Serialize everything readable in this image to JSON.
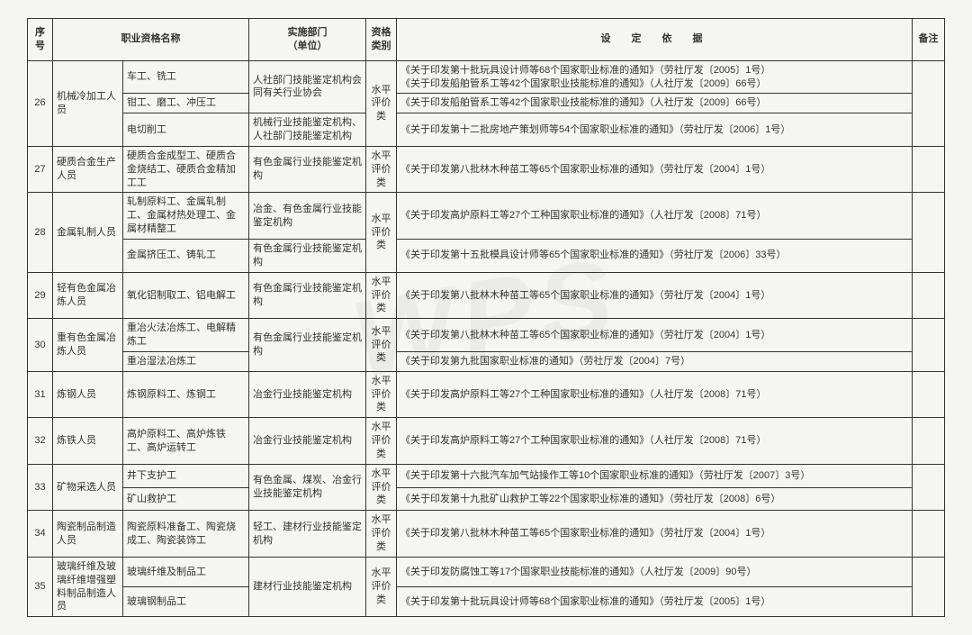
{
  "watermark": "WPS",
  "headers": {
    "seq": "序号",
    "name": "职业资格名称",
    "dept": "实施部门\n（单位）",
    "cat": "资格\n类别",
    "basis": "设　定　依　据",
    "note": "备注"
  },
  "rows": [
    {
      "seq": "26",
      "nameA": "机械冷加工人员",
      "sub": [
        {
          "nameB": "车工、铣工",
          "dept": "人社部门技能鉴定机构会同有关行业协会",
          "deptSpan": 2,
          "basis": "《关于印发第十批玩具设计师等68个国家职业标准的通知》（劳社厅发〔2005〕1号）\n《关于印发船舶管系工等42个国家职业技能标准的通知》（人社厅发〔2009〕66号）"
        },
        {
          "nameB": "钳工、磨工、冲压工",
          "basis": "《关于印发船舶管系工等42个国家职业技能标准的通知》（人社厅发〔2009〕66号）"
        },
        {
          "nameB": "电切削工",
          "dept": "机械行业技能鉴定机构、人社部门技能鉴定机构",
          "basis": "《关于印发第十二批房地产策划师等54个国家职业标准的通知》（劳社厅发〔2006〕1号）"
        }
      ],
      "cat": "水平\n评价类"
    },
    {
      "seq": "27",
      "nameA": "硬质合金生产人员",
      "sub": [
        {
          "nameB": "硬质合金成型工、硬质合金烧结工、硬质合金精加工工",
          "dept": "有色金属行业技能鉴定机构",
          "basis": "《关于印发第八批林木种苗工等65个国家职业标准的通知》（劳社厅发〔2004〕1号）"
        }
      ],
      "cat": "水平\n评价类"
    },
    {
      "seq": "28",
      "nameA": "金属轧制人员",
      "sub": [
        {
          "nameB": "轧制原料工、金属轧制工、金属材热处理工、金属材精整工",
          "dept": "冶金、有色金属行业技能鉴定机构",
          "basis": "《关于印发高炉原料工等27个工种国家职业标准的通知》（人社厅发〔2008〕71号）"
        },
        {
          "nameB": "金属挤压工、铸轧工",
          "dept": "有色金属行业技能鉴定机构",
          "basis": "《关于印发第十五批模具设计师等65个国家职业标准的通知》（劳社厅发〔2006〕33号）"
        }
      ],
      "cat": "水平\n评价类"
    },
    {
      "seq": "29",
      "nameA": "轻有色金属冶炼人员",
      "sub": [
        {
          "nameB": "氧化铝制取工、铝电解工",
          "dept": "有色金属行业技能鉴定机构",
          "basis": "《关于印发第八批林木种苗工等65个国家职业标准的通知》（劳社厅发〔2004〕1号）"
        }
      ],
      "cat": "水平\n评价类"
    },
    {
      "seq": "30",
      "nameA": "重有色金属冶炼人员",
      "sub": [
        {
          "nameB": "重冶火法冶炼工、电解精炼工",
          "dept": "有色金属行业技能鉴定机构",
          "deptSpan": 2,
          "basis": "《关于印发第八批林木种苗工等65个国家职业标准的通知》（劳社厅发〔2004〕1号）"
        },
        {
          "nameB": "重冶湿法冶炼工",
          "basis": "《关于印发第九批国家职业标准的通知》（劳社厅发〔2004〕7号）"
        }
      ],
      "cat": "水平\n评价类"
    },
    {
      "seq": "31",
      "nameA": "炼钢人员",
      "sub": [
        {
          "nameB": "炼钢原料工、炼钢工",
          "dept": "冶金行业技能鉴定机构",
          "basis": "《关于印发高炉原料工等27个工种国家职业标准的通知》（人社厅发〔2008〕71号）"
        }
      ],
      "cat": "水平\n评价类"
    },
    {
      "seq": "32",
      "nameA": "炼铁人员",
      "sub": [
        {
          "nameB": "高炉原料工、高炉炼铁工、高炉运转工",
          "dept": "冶金行业技能鉴定机构",
          "basis": "《关于印发高炉原料工等27个工种国家职业标准的通知》（人社厅发〔2008〕71号）"
        }
      ],
      "cat": "水平\n评价类"
    },
    {
      "seq": "33",
      "nameA": "矿物采选人员",
      "sub": [
        {
          "nameB": "井下支护工",
          "dept": "有色金属、煤炭、冶金行业技能鉴定机构",
          "deptSpan": 2,
          "basis": "《关于印发第十六批汽车加气站操作工等10个国家职业标准的通知》（劳社厅发〔2007〕3号）"
        },
        {
          "nameB": "矿山救护工",
          "basis": "《关于印发第十九批矿山救护工等22个国家职业标准的通知》（劳社厅发〔2008〕6号）"
        }
      ],
      "cat": "水平\n评价类"
    },
    {
      "seq": "34",
      "nameA": "陶瓷制品制造人员",
      "sub": [
        {
          "nameB": "陶瓷原料准备工、陶瓷烧成工、陶瓷装饰工",
          "dept": "轻工、建材行业技能鉴定机构",
          "basis": "《关于印发第八批林木种苗工等65个国家职业标准的通知》（劳社厅发〔2004〕1号）"
        }
      ],
      "cat": "水平\n评价类"
    },
    {
      "seq": "35",
      "nameA": "玻璃纤维及玻璃纤维增强塑料制品制造人员",
      "sub": [
        {
          "nameB": "玻璃纤维及制品工",
          "dept": "建材行业技能鉴定机构",
          "deptSpan": 2,
          "basis": "《关于印发防腐蚀工等17个国家职业技能标准的通知》（人社厅发〔2009〕90号）"
        },
        {
          "nameB": "玻璃钢制品工",
          "basis": "《关于印发第十批玩具设计师等68个国家职业标准的通知》（劳社厅发〔2005〕1号）"
        }
      ],
      "cat": "水平\n评价类"
    }
  ]
}
